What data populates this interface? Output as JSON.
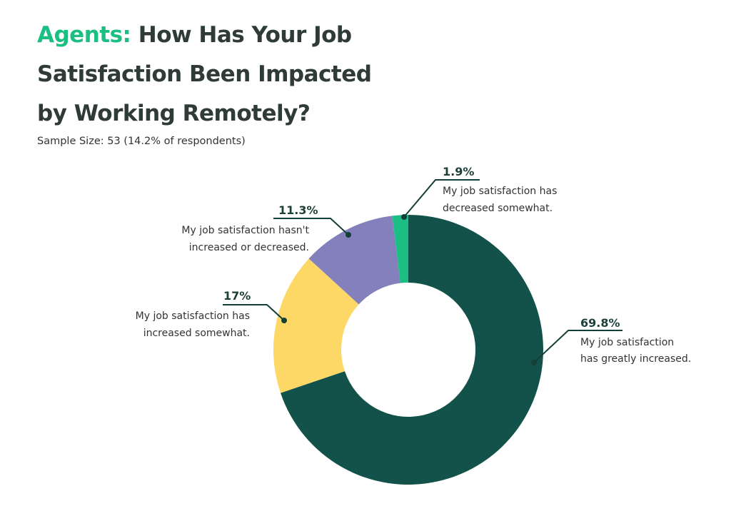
{
  "title": {
    "accent": "Agents:",
    "main": "How Has Your Job Satisfaction Been Impacted by Working Remotely?"
  },
  "subtitle": "Sample Size: 53 (14.2% of respondents)",
  "chart_data": {
    "type": "pie",
    "donut": true,
    "sample_size": 53,
    "slices": [
      {
        "label_lines": [
          "My job satisfaction",
          "has greatly increased."
        ],
        "value": 69.8,
        "value_label": "69.8%",
        "color": "#13524b"
      },
      {
        "label_lines": [
          "My job satisfaction has",
          "increased somewhat."
        ],
        "value": 17,
        "value_label": "17%",
        "color": "#fdd866"
      },
      {
        "label_lines": [
          "My job satisfaction hasn't",
          "increased or decreased."
        ],
        "value": 11.3,
        "value_label": "11.3%",
        "color": "#8480bb"
      },
      {
        "label_lines": [
          "My job satisfaction has",
          "decreased somewhat."
        ],
        "value": 1.9,
        "value_label": "1.9%",
        "color": "#1cbf83"
      }
    ]
  }
}
